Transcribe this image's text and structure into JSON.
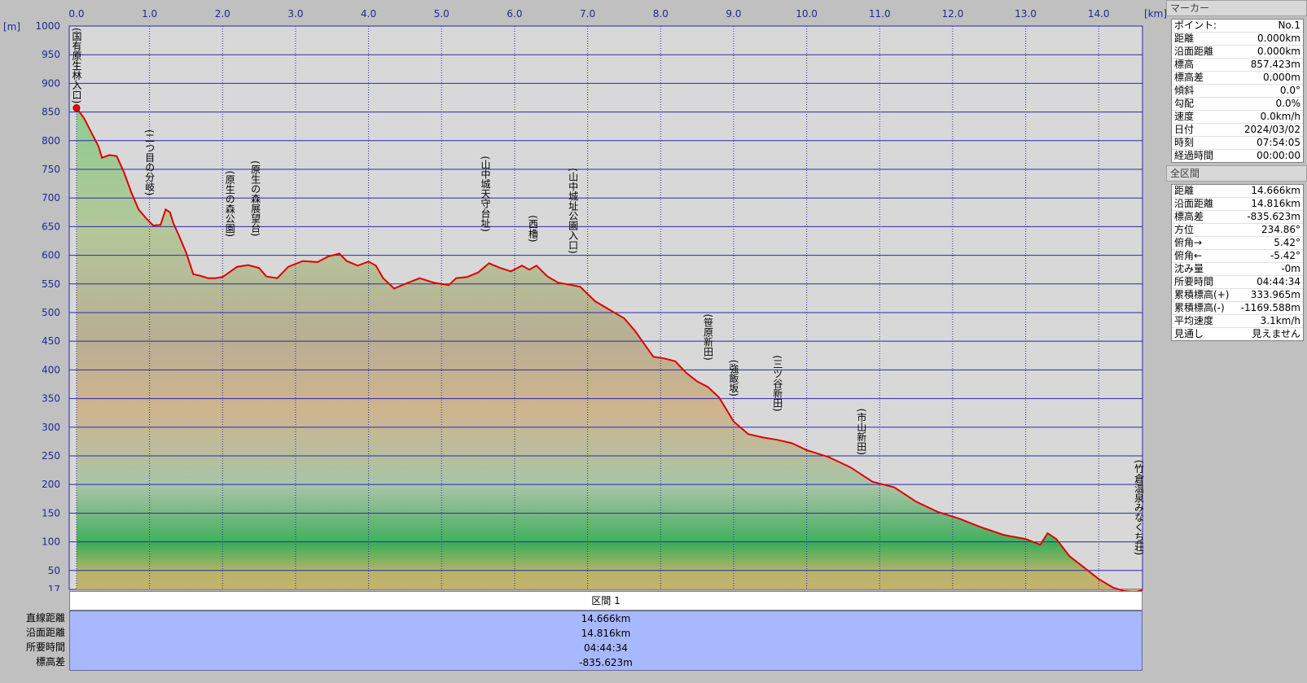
{
  "chart_data": {
    "type": "area",
    "xlabel_unit": "[km]",
    "ylabel_unit": "[m]",
    "xlim": [
      -0.1,
      14.6
    ],
    "ylim": [
      17,
      1000
    ],
    "x_ticks": [
      "0.0",
      "1.0",
      "2.0",
      "3.0",
      "4.0",
      "5.0",
      "6.0",
      "7.0",
      "8.0",
      "9.0",
      "10.0",
      "11.0",
      "12.0",
      "13.0",
      "14.0"
    ],
    "y_ticks": [
      "1000",
      "950",
      "900",
      "850",
      "800",
      "750",
      "700",
      "650",
      "600",
      "550",
      "500",
      "450",
      "400",
      "350",
      "300",
      "250",
      "200",
      "150",
      "100",
      "50",
      "17"
    ],
    "grid": true,
    "series": [
      {
        "x": [
          0,
          0.1,
          0.2,
          0.3,
          0.35,
          0.45,
          0.55,
          0.65,
          0.75,
          0.85,
          0.95,
          1.05,
          1.15,
          1.22,
          1.28,
          1.33,
          1.4,
          1.5,
          1.6,
          1.7,
          1.8,
          1.9,
          2.0,
          2.2,
          2.35,
          2.5,
          2.6,
          2.75,
          2.9,
          3.1,
          3.3,
          3.45,
          3.6,
          3.7,
          3.85,
          4.0,
          4.1,
          4.2,
          4.35,
          4.5,
          4.7,
          4.9,
          5.1,
          5.2,
          5.35,
          5.5,
          5.65,
          5.8,
          5.95,
          6.1,
          6.2,
          6.3,
          6.45,
          6.6,
          6.7,
          6.9,
          7.1,
          7.3,
          7.5,
          7.65,
          7.75,
          7.9,
          8.05,
          8.2,
          8.35,
          8.5,
          8.65,
          8.8,
          9.0,
          9.2,
          9.4,
          9.6,
          9.8,
          10.0,
          10.3,
          10.6,
          10.9,
          11.2,
          11.5,
          11.8,
          12.1,
          12.4,
          12.7,
          13.0,
          13.2,
          13.3,
          13.42,
          13.6,
          13.8,
          14.0,
          14.2,
          14.35,
          14.5,
          14.6
        ],
        "y": [
          857,
          840,
          815,
          790,
          770,
          775,
          773,
          745,
          710,
          680,
          665,
          652,
          653,
          680,
          675,
          655,
          635,
          605,
          567,
          564,
          560,
          560,
          562,
          580,
          583,
          578,
          563,
          560,
          580,
          590,
          588,
          598,
          603,
          590,
          582,
          589,
          582,
          560,
          542,
          550,
          560,
          552,
          548,
          560,
          562,
          570,
          586,
          578,
          572,
          582,
          575,
          582,
          563,
          552,
          550,
          545,
          520,
          505,
          490,
          468,
          450,
          423,
          420,
          415,
          395,
          380,
          370,
          352,
          310,
          288,
          282,
          278,
          272,
          260,
          248,
          230,
          205,
          195,
          170,
          152,
          140,
          125,
          112,
          105,
          95,
          115,
          105,
          75,
          55,
          35,
          20,
          14,
          12,
          16
        ]
      }
    ],
    "waypoints": [
      {
        "label": "(国有原生林入口)",
        "x": 0.0
      },
      {
        "label": "(二つ目の分岐)",
        "x": 1.0
      },
      {
        "label": "(原生の森公園)",
        "x": 2.1
      },
      {
        "label": "(原生の森展望台)",
        "x": 2.45
      },
      {
        "label": "(山中城天守台址)",
        "x": 5.6
      },
      {
        "label": "(西櫓)",
        "x": 6.25
      },
      {
        "label": "(山中城址公園入口)",
        "x": 6.8
      },
      {
        "label": "(笹原新田)",
        "x": 8.65
      },
      {
        "label": "(強飯坂)",
        "x": 9.0
      },
      {
        "label": "(三ツ谷新田)",
        "x": 9.6
      },
      {
        "label": "(市山新田)",
        "x": 10.75
      },
      {
        "label": "(竹倉温泉みなくち荘)",
        "x": 14.55
      }
    ]
  },
  "section": {
    "title": "区間 1",
    "rows": [
      {
        "label": "直線距離",
        "value": "14.666km"
      },
      {
        "label": "沿面距離",
        "value": "14.816km"
      },
      {
        "label": "所要時間",
        "value": "04:44:34"
      },
      {
        "label": "標高差",
        "value": "-835.623m"
      }
    ]
  },
  "panel": {
    "marker_title": "マーカー",
    "marker_rows": [
      {
        "k": "ポイント:",
        "v": "No.1"
      },
      {
        "k": "距離",
        "v": "0.000km"
      },
      {
        "k": "沿面距離",
        "v": "0.000km"
      },
      {
        "k": "標高",
        "v": "857.423m"
      },
      {
        "k": "標高差",
        "v": "0.000m"
      },
      {
        "k": "傾斜",
        "v": "0.0°"
      },
      {
        "k": "勾配",
        "v": "0.0%"
      },
      {
        "k": "速度",
        "v": "0.0km/h"
      },
      {
        "k": "日付",
        "v": "2024/03/02"
      },
      {
        "k": "時刻",
        "v": "07:54:05"
      },
      {
        "k": "経過時間",
        "v": "00:00:00"
      }
    ],
    "total_title": "全区間",
    "total_rows": [
      {
        "k": "距離",
        "v": "14.666km"
      },
      {
        "k": "沿面距離",
        "v": "14.816km"
      },
      {
        "k": "標高差",
        "v": "-835.623m"
      },
      {
        "k": "方位",
        "v": "234.86°"
      },
      {
        "k": "俯角→",
        "v": "5.42°"
      },
      {
        "k": "俯角←",
        "v": "-5.42°"
      },
      {
        "k": "沈み量",
        "v": "-0m"
      },
      {
        "k": "所要時間",
        "v": "04:44:34"
      },
      {
        "k": "累積標高(+)",
        "v": "333.965m"
      },
      {
        "k": "累積標高(-)",
        "v": "-1169.588m"
      },
      {
        "k": "平均速度",
        "v": "3.1km/h"
      },
      {
        "k": "見通し",
        "v": "見えません"
      }
    ]
  },
  "colors": {
    "plot_bg": "#d8d8d8",
    "grid": "#2a2aa8",
    "profile_line": "#e00000"
  }
}
